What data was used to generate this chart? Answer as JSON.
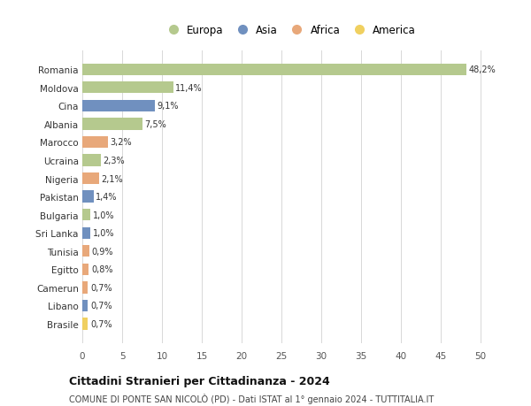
{
  "countries": [
    "Romania",
    "Moldova",
    "Cina",
    "Albania",
    "Marocco",
    "Ucraina",
    "Nigeria",
    "Pakistan",
    "Bulgaria",
    "Sri Lanka",
    "Tunisia",
    "Egitto",
    "Camerun",
    "Libano",
    "Brasile"
  ],
  "values": [
    48.2,
    11.4,
    9.1,
    7.5,
    3.2,
    2.3,
    2.1,
    1.4,
    1.0,
    1.0,
    0.9,
    0.8,
    0.7,
    0.7,
    0.7
  ],
  "labels": [
    "48,2%",
    "11,4%",
    "9,1%",
    "7,5%",
    "3,2%",
    "2,3%",
    "2,1%",
    "1,4%",
    "1,0%",
    "1,0%",
    "0,9%",
    "0,8%",
    "0,7%",
    "0,7%",
    "0,7%"
  ],
  "continents": [
    "Europa",
    "Europa",
    "Asia",
    "Europa",
    "Africa",
    "Europa",
    "Africa",
    "Asia",
    "Europa",
    "Asia",
    "Africa",
    "Africa",
    "Africa",
    "Asia",
    "America"
  ],
  "continent_colors": {
    "Europa": "#b5c98e",
    "Asia": "#7090bf",
    "Africa": "#e8a87a",
    "America": "#f0d060"
  },
  "legend_order": [
    "Europa",
    "Asia",
    "Africa",
    "America"
  ],
  "title": "Cittadini Stranieri per Cittadinanza - 2024",
  "subtitle": "COMUNE DI PONTE SAN NICOLÒ (PD) - Dati ISTAT al 1° gennaio 2024 - TUTTITALIA.IT",
  "xlim": [
    0,
    52
  ],
  "xticks": [
    0,
    5,
    10,
    15,
    20,
    25,
    30,
    35,
    40,
    45,
    50
  ],
  "background_color": "#ffffff",
  "grid_color": "#d8d8d8"
}
